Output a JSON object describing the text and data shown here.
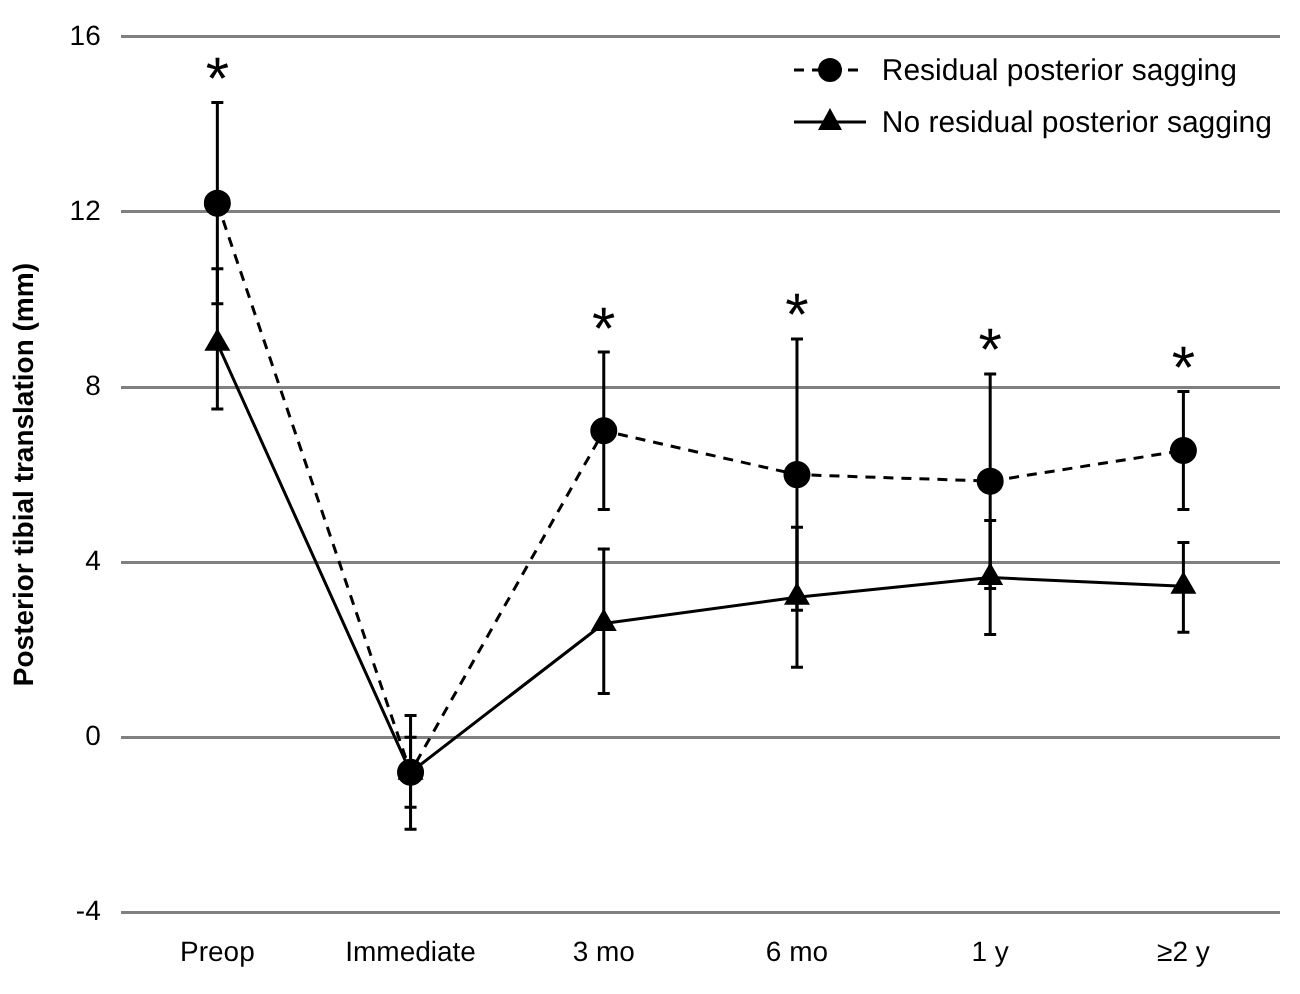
{
  "chart_data": {
    "type": "line",
    "ylabel": "Posterior tibial translation (mm)",
    "categories": [
      "Preop",
      "Immediate",
      "3 mo",
      "6 mo",
      "1 y",
      "≥2 y"
    ],
    "ylim": [
      -4,
      16
    ],
    "yticks": [
      -4,
      0,
      4,
      8,
      12,
      16
    ],
    "grid": "y",
    "legend": "top right",
    "series": [
      {
        "name": "Residual posterior sagging",
        "color": "#000000",
        "marker": "circle",
        "line_style": "dashed",
        "values": [
          12.2,
          -0.8,
          7.0,
          6.0,
          5.85,
          6.55
        ],
        "errors": [
          [
            9.9,
            14.5
          ],
          [
            -2.1,
            0.5
          ],
          [
            5.2,
            8.8
          ],
          [
            2.9,
            9.1
          ],
          [
            3.4,
            8.3
          ],
          [
            5.2,
            7.9
          ]
        ]
      },
      {
        "name": "No residual posterior sagging",
        "color": "#000000",
        "marker": "triangle",
        "line_style": "solid",
        "values": [
          9.0,
          -0.8,
          2.6,
          3.2,
          3.65,
          3.45
        ],
        "errors": [
          [
            7.5,
            10.7
          ],
          [
            -1.6,
            0.0
          ],
          [
            1.0,
            4.3
          ],
          [
            1.6,
            4.8
          ],
          [
            2.35,
            4.95
          ],
          [
            2.4,
            4.45
          ]
        ]
      }
    ],
    "annotations": [
      "*",
      "*",
      "*",
      "*",
      "*"
    ]
  }
}
